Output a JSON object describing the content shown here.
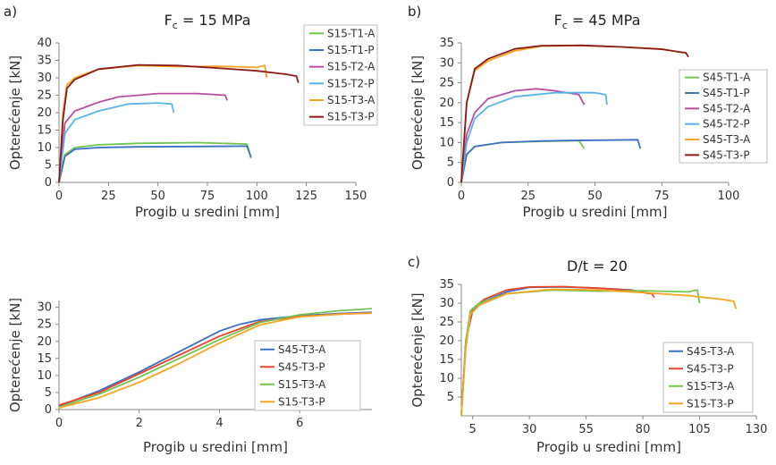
{
  "colors": {
    "blue": "#3d6fc4",
    "orange": "#f5a623",
    "green": "#71c452",
    "purple": "#b84ea3",
    "lightblue": "#58b4e8",
    "darkred": "#8b1a1a",
    "red": "#e8472c",
    "axis": "#888888"
  },
  "chart_data": [
    {
      "panel_label": "a)",
      "title": "F_c = 15 MPa",
      "title_main": "F",
      "title_sub": "c",
      "title_rest": " = 15 MPa",
      "type": "line",
      "xlabel": "Progib u sredini [mm]",
      "ylabel": "Opterećenje [kN]",
      "xlim": [
        0,
        150
      ],
      "ylim": [
        0,
        40
      ],
      "xticks": [
        0,
        25,
        50,
        75,
        100,
        125,
        150
      ],
      "yticks": [
        0,
        5,
        10,
        15,
        20,
        25,
        30,
        35,
        40
      ],
      "legend_position": "right",
      "series": [
        {
          "name": "S15-T1-A",
          "color": "green",
          "points": [
            [
              0,
              0
            ],
            [
              3,
              8
            ],
            [
              8,
              10
            ],
            [
              20,
              10.8
            ],
            [
              40,
              11.2
            ],
            [
              70,
              11.4
            ],
            [
              95,
              11
            ],
            [
              97,
              7
            ]
          ]
        },
        {
          "name": "S15-T1-P",
          "color": "blue",
          "points": [
            [
              0,
              0
            ],
            [
              3,
              7.5
            ],
            [
              8,
              9.5
            ],
            [
              20,
              10
            ],
            [
              40,
              10.2
            ],
            [
              70,
              10.3
            ],
            [
              95,
              10.4
            ],
            [
              97,
              7.3
            ]
          ]
        },
        {
          "name": "S15-T2-A",
          "color": "purple",
          "points": [
            [
              0,
              0
            ],
            [
              3,
              17
            ],
            [
              8,
              20.5
            ],
            [
              20,
              23
            ],
            [
              30,
              24.5
            ],
            [
              50,
              25.5
            ],
            [
              70,
              25.5
            ],
            [
              84,
              25
            ],
            [
              85,
              23.5
            ]
          ]
        },
        {
          "name": "S15-T2-P",
          "color": "lightblue",
          "points": [
            [
              0,
              0
            ],
            [
              3,
              14
            ],
            [
              8,
              18
            ],
            [
              20,
              20.5
            ],
            [
              35,
              22.5
            ],
            [
              50,
              22.8
            ],
            [
              57,
              22.5
            ],
            [
              58,
              20
            ]
          ]
        },
        {
          "name": "S15-T3-A",
          "color": "orange",
          "points": [
            [
              0,
              0
            ],
            [
              2,
              20
            ],
            [
              4,
              28
            ],
            [
              8,
              30
            ],
            [
              20,
              32.5
            ],
            [
              40,
              33.5
            ],
            [
              60,
              33.2
            ],
            [
              80,
              33.3
            ],
            [
              100,
              33
            ],
            [
              104,
              33.5
            ],
            [
              105,
              30
            ]
          ]
        },
        {
          "name": "S15-T3-P",
          "color": "darkred",
          "points": [
            [
              0,
              0
            ],
            [
              2,
              18
            ],
            [
              4,
              27
            ],
            [
              8,
              29.5
            ],
            [
              20,
              32.5
            ],
            [
              40,
              33.7
            ],
            [
              60,
              33.5
            ],
            [
              80,
              32.8
            ],
            [
              100,
              32
            ],
            [
              115,
              31
            ],
            [
              120,
              30.5
            ],
            [
              121,
              28.5
            ]
          ]
        }
      ]
    },
    {
      "panel_label": "b)",
      "title": "F_c = 45 MPa",
      "title_main": "F",
      "title_sub": "c",
      "title_rest": " = 45 MPa",
      "type": "line",
      "xlabel": "Progib u sredini [mm]",
      "ylabel": "Opterećenje [kN]",
      "xlim": [
        0,
        100
      ],
      "ylim": [
        0,
        35
      ],
      "xticks": [
        0,
        25,
        50,
        75,
        100
      ],
      "yticks": [
        0,
        5,
        10,
        15,
        20,
        25,
        30,
        35
      ],
      "legend_position": "right",
      "series": [
        {
          "name": "S45-T1-A",
          "color": "green",
          "points": [
            [
              0,
              0
            ],
            [
              2,
              7
            ],
            [
              5,
              9
            ],
            [
              15,
              10
            ],
            [
              30,
              10.3
            ],
            [
              44,
              10.5
            ],
            [
              46,
              8.5
            ]
          ]
        },
        {
          "name": "S45-T1-P",
          "color": "blue",
          "points": [
            [
              0,
              0
            ],
            [
              2,
              7
            ],
            [
              5,
              9
            ],
            [
              15,
              10
            ],
            [
              30,
              10.4
            ],
            [
              50,
              10.6
            ],
            [
              66,
              10.7
            ],
            [
              67,
              8.5
            ]
          ]
        },
        {
          "name": "S45-T2-A",
          "color": "purple",
          "points": [
            [
              0,
              0
            ],
            [
              2,
              12
            ],
            [
              5,
              17.5
            ],
            [
              10,
              21
            ],
            [
              20,
              23
            ],
            [
              28,
              23.5
            ],
            [
              35,
              23
            ],
            [
              44,
              22
            ],
            [
              46,
              19.5
            ]
          ]
        },
        {
          "name": "S45-T2-P",
          "color": "lightblue",
          "points": [
            [
              0,
              0
            ],
            [
              2,
              10
            ],
            [
              5,
              16
            ],
            [
              10,
              19
            ],
            [
              20,
              21.5
            ],
            [
              35,
              22.5
            ],
            [
              50,
              22.5
            ],
            [
              54,
              22
            ],
            [
              54.5,
              19.5
            ]
          ]
        },
        {
          "name": "S45-T3-A",
          "color": "orange",
          "points": [
            [
              0,
              0
            ],
            [
              2,
              20
            ],
            [
              5,
              28
            ],
            [
              10,
              30.5
            ],
            [
              20,
              33
            ],
            [
              30,
              34.2
            ],
            [
              45,
              34.3
            ],
            [
              60,
              34
            ],
            [
              75,
              33.5
            ],
            [
              83,
              32.5
            ]
          ]
        },
        {
          "name": "S45-T3-P",
          "color": "darkred",
          "points": [
            [
              0,
              0
            ],
            [
              2,
              20
            ],
            [
              5,
              28.5
            ],
            [
              10,
              31
            ],
            [
              20,
              33.5
            ],
            [
              30,
              34.3
            ],
            [
              45,
              34.4
            ],
            [
              60,
              34
            ],
            [
              75,
              33.4
            ],
            [
              84,
              32.5
            ],
            [
              85,
              31.5
            ]
          ]
        }
      ]
    },
    {
      "panel_label": "",
      "title": "",
      "type": "line",
      "xlabel": "Progib u sredini [mm]",
      "ylabel": "Opterećenje [kN]",
      "xlim": [
        0,
        7.8
      ],
      "ylim": [
        0,
        32
      ],
      "xticks": [
        0,
        2,
        4,
        6
      ],
      "yticks": [
        0,
        5,
        10,
        15,
        20,
        25,
        30
      ],
      "legend_position": "right",
      "series": [
        {
          "name": "S45-T3-A",
          "color": "blue",
          "points": [
            [
              0,
              1
            ],
            [
              1,
              5.5
            ],
            [
              2,
              11
            ],
            [
              3,
              17
            ],
            [
              4,
              23
            ],
            [
              4.5,
              25
            ],
            [
              5,
              26.3
            ],
            [
              6,
              27.5
            ],
            [
              7,
              28.2
            ],
            [
              7.8,
              28.5
            ]
          ]
        },
        {
          "name": "S45-T3-P",
          "color": "red",
          "points": [
            [
              0,
              1.3
            ],
            [
              1,
              5
            ],
            [
              2,
              10.5
            ],
            [
              3,
              16
            ],
            [
              4,
              21.5
            ],
            [
              5,
              25.8
            ],
            [
              6,
              27.3
            ],
            [
              7,
              28
            ],
            [
              7.8,
              28.3
            ]
          ]
        },
        {
          "name": "S15-T3-A",
          "color": "green",
          "points": [
            [
              0,
              0.7
            ],
            [
              1,
              4.5
            ],
            [
              2,
              9.5
            ],
            [
              3,
              15
            ],
            [
              4,
              20.5
            ],
            [
              5,
              25.5
            ],
            [
              6,
              27.8
            ],
            [
              7,
              29
            ],
            [
              7.8,
              29.6
            ]
          ]
        },
        {
          "name": "S15-T3-P",
          "color": "orange",
          "points": [
            [
              0,
              0.5
            ],
            [
              1,
              3.5
            ],
            [
              2,
              8
            ],
            [
              3,
              13.5
            ],
            [
              4,
              19.5
            ],
            [
              5,
              24.8
            ],
            [
              6,
              27.2
            ],
            [
              7,
              28
            ],
            [
              7.8,
              28.3
            ]
          ]
        }
      ]
    },
    {
      "panel_label": "c)",
      "title": "D/t = 20",
      "title_main": "D/t = 20",
      "title_sub": "",
      "title_rest": "",
      "type": "line",
      "xlabel": "Progib u sredini [mm]",
      "ylabel": "Opterećenje [kN]",
      "xlim": [
        0,
        130
      ],
      "ylim": [
        0,
        35
      ],
      "xticks": [
        5,
        30,
        55,
        80,
        105,
        130
      ],
      "yticks": [
        5,
        10,
        15,
        20,
        25,
        30,
        35
      ],
      "legend_position": "right",
      "series": [
        {
          "name": "S45-T3-A",
          "color": "blue",
          "points": [
            [
              0,
              0
            ],
            [
              2,
              20
            ],
            [
              5,
              28
            ],
            [
              10,
              30.5
            ],
            [
              20,
              33
            ],
            [
              30,
              34.2
            ],
            [
              45,
              34.3
            ],
            [
              60,
              34
            ],
            [
              75,
              33.5
            ],
            [
              83,
              32.5
            ]
          ]
        },
        {
          "name": "S45-T3-P",
          "color": "red",
          "points": [
            [
              0,
              0
            ],
            [
              2,
              20
            ],
            [
              5,
              28.5
            ],
            [
              10,
              31
            ],
            [
              20,
              33.5
            ],
            [
              30,
              34.3
            ],
            [
              45,
              34.4
            ],
            [
              60,
              34
            ],
            [
              75,
              33.4
            ],
            [
              84,
              32.5
            ],
            [
              85,
              31.5
            ]
          ]
        },
        {
          "name": "S15-T3-A",
          "color": "green",
          "points": [
            [
              0,
              0
            ],
            [
              2,
              20
            ],
            [
              4,
              28
            ],
            [
              8,
              30
            ],
            [
              20,
              32.5
            ],
            [
              40,
              33.5
            ],
            [
              60,
              33.2
            ],
            [
              80,
              33.3
            ],
            [
              100,
              33
            ],
            [
              104,
              33.5
            ],
            [
              105,
              30
            ]
          ]
        },
        {
          "name": "S15-T3-P",
          "color": "orange",
          "points": [
            [
              0,
              0
            ],
            [
              2,
              18
            ],
            [
              4,
              27
            ],
            [
              8,
              29.5
            ],
            [
              20,
              32.5
            ],
            [
              40,
              33.7
            ],
            [
              60,
              33.5
            ],
            [
              80,
              32.8
            ],
            [
              100,
              32
            ],
            [
              115,
              31
            ],
            [
              120,
              30.5
            ],
            [
              121,
              28.5
            ]
          ]
        }
      ]
    }
  ]
}
